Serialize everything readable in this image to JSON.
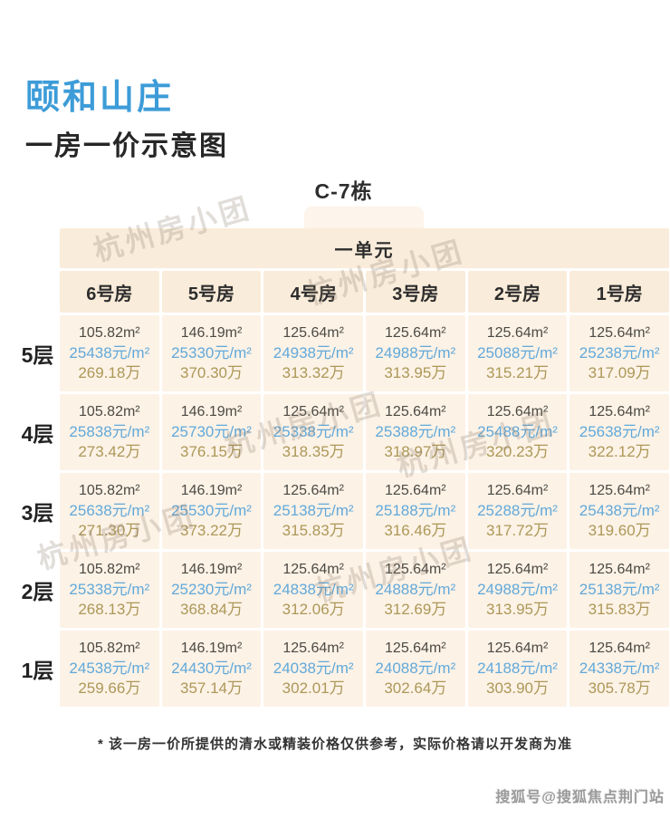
{
  "header": {
    "project_name": "颐和山庄",
    "subtitle": "一房一价示意图",
    "building": "C-7栋",
    "unit": "一单元"
  },
  "table": {
    "room_headers": [
      "6号房",
      "5号房",
      "4号房",
      "3号房",
      "2号房",
      "1号房"
    ],
    "floors": [
      {
        "label": "5层",
        "cells": [
          {
            "area": "105.82m²",
            "unit_price": "25438元/m²",
            "total": "269.18万"
          },
          {
            "area": "146.19m²",
            "unit_price": "25330元/m²",
            "total": "370.30万"
          },
          {
            "area": "125.64m²",
            "unit_price": "24938元/m²",
            "total": "313.32万"
          },
          {
            "area": "125.64m²",
            "unit_price": "24988元/m²",
            "total": "313.95万"
          },
          {
            "area": "125.64m²",
            "unit_price": "25088元/m²",
            "total": "315.21万"
          },
          {
            "area": "125.64m²",
            "unit_price": "25238元/m²",
            "total": "317.09万"
          }
        ]
      },
      {
        "label": "4层",
        "cells": [
          {
            "area": "105.82m²",
            "unit_price": "25838元/m²",
            "total": "273.42万"
          },
          {
            "area": "146.19m²",
            "unit_price": "25730元/m²",
            "total": "376.15万"
          },
          {
            "area": "125.64m²",
            "unit_price": "25338元/m²",
            "total": "318.35万"
          },
          {
            "area": "125.64m²",
            "unit_price": "25388元/m²",
            "total": "318.97万"
          },
          {
            "area": "125.64m²",
            "unit_price": "25488元/m²",
            "total": "320.23万"
          },
          {
            "area": "125.64m²",
            "unit_price": "25638元/m²",
            "total": "322.12万"
          }
        ]
      },
      {
        "label": "3层",
        "cells": [
          {
            "area": "105.82m²",
            "unit_price": "25638元/m²",
            "total": "271.30万"
          },
          {
            "area": "146.19m²",
            "unit_price": "25530元/m²",
            "total": "373.22万"
          },
          {
            "area": "125.64m²",
            "unit_price": "25138元/m²",
            "total": "315.83万"
          },
          {
            "area": "125.64m²",
            "unit_price": "25188元/m²",
            "total": "316.46万"
          },
          {
            "area": "125.64m²",
            "unit_price": "25288元/m²",
            "total": "317.72万"
          },
          {
            "area": "125.64m²",
            "unit_price": "25438元/m²",
            "total": "319.60万"
          }
        ]
      },
      {
        "label": "2层",
        "cells": [
          {
            "area": "105.82m²",
            "unit_price": "25338元/m²",
            "total": "268.13万"
          },
          {
            "area": "146.19m²",
            "unit_price": "25230元/m²",
            "total": "368.84万"
          },
          {
            "area": "125.64m²",
            "unit_price": "24838元/m²",
            "total": "312.06万"
          },
          {
            "area": "125.64m²",
            "unit_price": "24888元/m²",
            "total": "312.69万"
          },
          {
            "area": "125.64m²",
            "unit_price": "24988元/m²",
            "total": "313.95万"
          },
          {
            "area": "125.64m²",
            "unit_price": "25138元/m²",
            "total": "315.83万"
          }
        ]
      },
      {
        "label": "1层",
        "cells": [
          {
            "area": "105.82m²",
            "unit_price": "24538元/m²",
            "total": "259.66万"
          },
          {
            "area": "146.19m²",
            "unit_price": "24430元/m²",
            "total": "357.14万"
          },
          {
            "area": "125.64m²",
            "unit_price": "24038元/m²",
            "total": "302.01万"
          },
          {
            "area": "125.64m²",
            "unit_price": "24088元/m²",
            "total": "302.64万"
          },
          {
            "area": "125.64m²",
            "unit_price": "24188元/m²",
            "total": "303.90万"
          },
          {
            "area": "125.64m²",
            "unit_price": "24338元/m²",
            "total": "305.78万"
          }
        ]
      }
    ]
  },
  "footnote": "* 该一房一价所提供的清水或精装价格仅供参考，实际价格请以开发商为准",
  "watermarks": {
    "diagonal_text": "杭州房小团",
    "sohu_text": "搜狐号@搜狐焦点荆门站"
  },
  "colors": {
    "title_blue": "#3d9cd8",
    "unit_price_blue": "#61a9da",
    "total_price_gold": "#ac9858",
    "header_cell_bg": "#faecda",
    "data_cell_bg": "#fdf2e6",
    "tab_bg": "#fdf4eb"
  },
  "chart_data": {
    "type": "table",
    "title": "颐和山庄 一房一价示意图 C-7栋 一单元",
    "columns": [
      "6号房",
      "5号房",
      "4号房",
      "3号房",
      "2号房",
      "1号房"
    ],
    "row_labels": [
      "5层",
      "4层",
      "3层",
      "2层",
      "1层"
    ],
    "cell_fields": [
      "area_m2",
      "unit_price_yuan_per_m2",
      "total_price_wan"
    ],
    "rows": [
      [
        [
          105.82,
          25438,
          269.18
        ],
        [
          146.19,
          25330,
          370.3
        ],
        [
          125.64,
          24938,
          313.32
        ],
        [
          125.64,
          24988,
          313.95
        ],
        [
          125.64,
          25088,
          315.21
        ],
        [
          125.64,
          25238,
          317.09
        ]
      ],
      [
        [
          105.82,
          25838,
          273.42
        ],
        [
          146.19,
          25730,
          376.15
        ],
        [
          125.64,
          25338,
          318.35
        ],
        [
          125.64,
          25388,
          318.97
        ],
        [
          125.64,
          25488,
          320.23
        ],
        [
          125.64,
          25638,
          322.12
        ]
      ],
      [
        [
          105.82,
          25638,
          271.3
        ],
        [
          146.19,
          25530,
          373.22
        ],
        [
          125.64,
          25138,
          315.83
        ],
        [
          125.64,
          25188,
          316.46
        ],
        [
          125.64,
          25288,
          317.72
        ],
        [
          125.64,
          25438,
          319.6
        ]
      ],
      [
        [
          105.82,
          25338,
          268.13
        ],
        [
          146.19,
          25230,
          368.84
        ],
        [
          125.64,
          24838,
          312.06
        ],
        [
          125.64,
          24888,
          312.69
        ],
        [
          125.64,
          24988,
          313.95
        ],
        [
          125.64,
          25138,
          315.83
        ]
      ],
      [
        [
          105.82,
          24538,
          259.66
        ],
        [
          146.19,
          24430,
          357.14
        ],
        [
          125.64,
          24038,
          302.01
        ],
        [
          125.64,
          24088,
          302.64
        ],
        [
          125.64,
          24188,
          303.9
        ],
        [
          125.64,
          24338,
          305.78
        ]
      ]
    ],
    "footnote": "* 该一房一价所提供的清水或精装价格仅供参考，实际价格请以开发商为准"
  }
}
